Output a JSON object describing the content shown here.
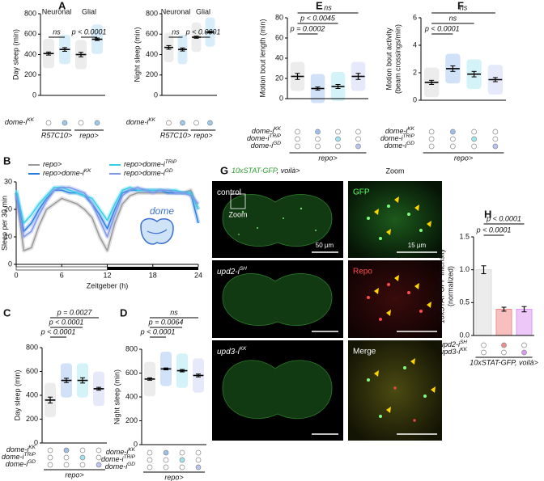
{
  "chart_data": [
    {
      "type": "dotplot",
      "panel": "A",
      "ylabel": "Day sleep (min)",
      "ylim": [
        0,
        800
      ],
      "yticks": [
        0,
        200,
        400,
        600,
        800
      ],
      "headers": [
        "Neuronal",
        "Glial"
      ],
      "values": [
        410,
        450,
        400,
        550
      ],
      "errors": [
        15,
        18,
        22,
        12
      ],
      "colors": [
        "#a8a8a8",
        "#4aaee8",
        "#a8a8a8",
        "#4aaee8"
      ],
      "comparisons": [
        "ns",
        "p < 0.0001"
      ],
      "rows": [
        {
          "label": "dome-i",
          "sup": "KK",
          "fills": [
            null,
            "#9cc9ee",
            null,
            "#9cc9ee"
          ]
        }
      ],
      "group_labels": [
        "R57C10>",
        "repo>"
      ]
    },
    {
      "type": "dotplot",
      "ylabel": "Night sleep (min)",
      "ylim": [
        0,
        800
      ],
      "yticks": [
        0,
        200,
        400,
        600,
        800
      ],
      "headers": [
        "Neuronal",
        "Glial"
      ],
      "values": [
        470,
        450,
        570,
        620
      ],
      "errors": [
        18,
        15,
        10,
        8
      ],
      "colors": [
        "#a8a8a8",
        "#4aaee8",
        "#a8a8a8",
        "#4aaee8"
      ],
      "comparisons": [
        "ns",
        "p < 0.0001"
      ],
      "rows": [
        {
          "label": "dome-i",
          "sup": "KK",
          "fills": [
            null,
            "#9cc9ee",
            null,
            "#9cc9ee"
          ]
        }
      ],
      "group_labels": [
        "R57C10>",
        "repo>"
      ]
    },
    {
      "type": "line",
      "panel": "B",
      "ylabel": "Sleep per 30 min",
      "xlabel": "Zeitgeber (h)",
      "annotation": "dome",
      "xlim": [
        0,
        24
      ],
      "xticks": [
        0,
        6,
        12,
        18,
        24
      ],
      "ylim": [
        0,
        30
      ],
      "yticks": [
        0,
        10,
        20,
        30
      ],
      "x": [
        0,
        1,
        2,
        3,
        4,
        5,
        6,
        7,
        8,
        9,
        10,
        11,
        12,
        13,
        14,
        15,
        16,
        17,
        18,
        19,
        20,
        21,
        22,
        23,
        24
      ],
      "series": [
        {
          "name": "repo>",
          "color": "#9a9a9a",
          "values": [
            26,
            5,
            6,
            14,
            20,
            22,
            24,
            23,
            22,
            20,
            17,
            10,
            5,
            15,
            22,
            25,
            26,
            26,
            26,
            26,
            26,
            26,
            26,
            27,
            20
          ]
        },
        {
          "name": "repo>dome-i",
          "sup": "KK",
          "color": "#2a7de0",
          "values": [
            26,
            12,
            15,
            20,
            24,
            27,
            27,
            26,
            26,
            25,
            22,
            18,
            13,
            20,
            26,
            27,
            27,
            27,
            27,
            27,
            26,
            26,
            26,
            26,
            15
          ]
        },
        {
          "name": "repo>dome-i",
          "sup": "TRiP",
          "color": "#35d0e6",
          "values": [
            27,
            15,
            18,
            22,
            25,
            28,
            28,
            27,
            26,
            25,
            24,
            20,
            16,
            22,
            27,
            28,
            27,
            27,
            27,
            27,
            27,
            27,
            26,
            26,
            20
          ]
        },
        {
          "name": "repo>dome-i",
          "sup": "GD",
          "color": "#7f96ea",
          "values": [
            25,
            10,
            12,
            18,
            23,
            27,
            28,
            28,
            27,
            26,
            22,
            16,
            10,
            18,
            25,
            27,
            28,
            27,
            26,
            27,
            27,
            26,
            26,
            25,
            22
          ]
        }
      ]
    },
    {
      "type": "dotplot",
      "panel": "C",
      "ylabel": "Day sleep (min)",
      "ylim": [
        0,
        800
      ],
      "yticks": [
        0,
        200,
        400,
        600,
        800
      ],
      "values": [
        360,
        525,
        525,
        455
      ],
      "errors": [
        25,
        18,
        22,
        12
      ],
      "colors": [
        "#a8a8a8",
        "#2f7ce0",
        "#38c8e0",
        "#8c9be6"
      ],
      "comparisons": [
        "p = 0.0027",
        "p < 0.0001",
        "p < 0.0001"
      ],
      "rows": [
        {
          "label": "dome-i",
          "sup": "KK",
          "fills": [
            null,
            "#9cc0ee",
            null,
            null
          ]
        },
        {
          "label": "dome-i",
          "sup": "TRiP",
          "fills": [
            null,
            null,
            "#9fe4ee",
            null
          ]
        },
        {
          "label": "dome-i",
          "sup": "GD",
          "fills": [
            null,
            null,
            null,
            "#b9c4f2"
          ]
        }
      ],
      "group_labels": [
        "repo>"
      ]
    },
    {
      "type": "dotplot",
      "panel": "D",
      "ylabel": "Night sleep (min)",
      "ylim": [
        0,
        800
      ],
      "yticks": [
        0,
        200,
        400,
        600,
        800
      ],
      "values": [
        550,
        635,
        620,
        580
      ],
      "errors": [
        10,
        8,
        10,
        12
      ],
      "colors": [
        "#a8a8a8",
        "#2f7ce0",
        "#38c8e0",
        "#8c9be6"
      ],
      "comparisons": [
        "ns",
        "p = 0.0064",
        "p < 0.0001"
      ],
      "rows": [
        {
          "label": "dome-i",
          "sup": "KK",
          "fills": [
            null,
            "#9cc0ee",
            null,
            null
          ]
        },
        {
          "label": "dome-i",
          "sup": "TRiP",
          "fills": [
            null,
            null,
            "#9fe4ee",
            null
          ]
        },
        {
          "label": "dome-i",
          "sup": "GD",
          "fills": [
            null,
            null,
            null,
            "#b9c4f2"
          ]
        }
      ],
      "group_labels": [
        "repo>"
      ]
    },
    {
      "type": "dotplot",
      "panel": "E",
      "ylabel": "Motion bout length (min)",
      "ylim": [
        0,
        80
      ],
      "yticks": [
        0,
        20,
        40,
        60,
        80
      ],
      "values": [
        22,
        10,
        12,
        22
      ],
      "errors": [
        3,
        1.5,
        2,
        3
      ],
      "colors": [
        "#a8a8a8",
        "#2f7ce0",
        "#38c8e0",
        "#8c9be6"
      ],
      "comparisons": [
        "ns",
        "p < 0.0045",
        "p = 0.0002"
      ],
      "rows": [
        {
          "label": "dome-i",
          "sup": "KK",
          "fills": [
            null,
            "#9cc0ee",
            null,
            null
          ]
        },
        {
          "label": "dome-i",
          "sup": "TRiP",
          "fills": [
            null,
            null,
            "#9fe4ee",
            null
          ]
        },
        {
          "label": "dome-i",
          "sup": "GD",
          "fills": [
            null,
            null,
            null,
            "#b9c4f2"
          ]
        }
      ],
      "group_labels": [
        "repo>"
      ]
    },
    {
      "type": "dotplot",
      "panel": "F",
      "ylabel": [
        "Motion bout activity",
        "(beam crossings/min)"
      ],
      "ylim": [
        0,
        6
      ],
      "yticks": [
        0,
        2,
        4,
        6
      ],
      "values": [
        1.3,
        2.3,
        1.9,
        1.5
      ],
      "errors": [
        0.15,
        0.2,
        0.2,
        0.15
      ],
      "colors": [
        "#a8a8a8",
        "#2f7ce0",
        "#38c8e0",
        "#8c9be6"
      ],
      "comparisons": [
        "ns",
        "ns",
        "p < 0.0001"
      ],
      "rows": [
        {
          "label": "dome-i",
          "sup": "KK",
          "fills": [
            null,
            "#9cc0ee",
            null,
            null
          ]
        },
        {
          "label": "dome-i",
          "sup": "TRiP",
          "fills": [
            null,
            null,
            "#9fe4ee",
            null
          ]
        },
        {
          "label": "dome-i",
          "sup": "GD",
          "fills": [
            null,
            null,
            null,
            "#b9c4f2"
          ]
        }
      ],
      "group_labels": [
        "repo>"
      ]
    },
    {
      "type": "bar",
      "panel": "H",
      "ylabel": [
        "10xSTAT-GFP intensity",
        "(normalized)"
      ],
      "ylim": [
        0,
        1.5
      ],
      "yticks": [
        {
          "value": 0,
          "label": "0.0"
        },
        0.5,
        {
          "value": 1,
          "label": "1.0"
        },
        1.5
      ],
      "values": [
        1.0,
        0.4,
        0.4
      ],
      "errors": [
        0.06,
        0.03,
        0.04
      ],
      "colors": [
        "#dcdcdc",
        "#f28b8b",
        "#dd99f2"
      ],
      "comparisons": [
        "p < 0.0001",
        "p < 0.0001"
      ],
      "rows": [
        {
          "label": "upd2-i",
          "sup": "SH",
          "fills": [
            null,
            "#f28b8b",
            null
          ]
        },
        {
          "label": "upd3-i",
          "sup": "KK",
          "fills": [
            null,
            null,
            "#dd99f2"
          ]
        }
      ],
      "group_labels": [
        "10xSTAT-GFP, voilà>"
      ]
    }
  ],
  "panel_g": {
    "panel": "G",
    "title": "10xSTAT-GFP",
    "title_suffix": ", voilà>",
    "zoom_header": "Zoom",
    "zoom_box_label": "Zoom",
    "rows": [
      {
        "label": "control",
        "channel": "GFP"
      },
      {
        "label": "upd2-i",
        "sup": "SH",
        "channel": "Repo"
      },
      {
        "label": "upd3-i",
        "sup": "KK",
        "channel": "Merge"
      }
    ],
    "scale_bars": [
      "50 µm",
      "15 µm"
    ]
  }
}
